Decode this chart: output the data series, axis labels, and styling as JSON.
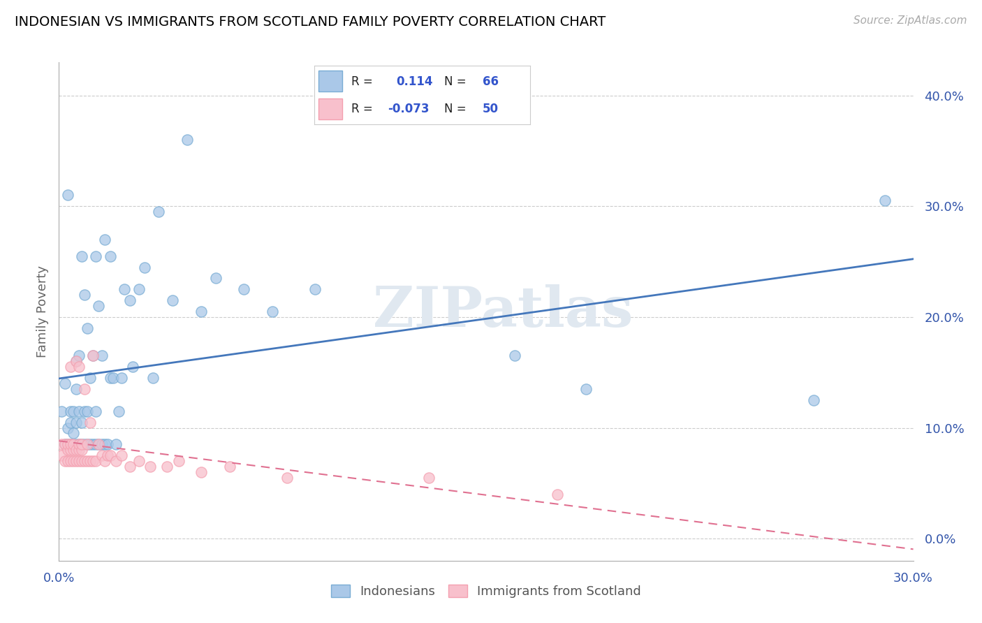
{
  "title": "INDONESIAN VS IMMIGRANTS FROM SCOTLAND FAMILY POVERTY CORRELATION CHART",
  "source": "Source: ZipAtlas.com",
  "ylabel": "Family Poverty",
  "xlim": [
    0.0,
    0.3
  ],
  "ylim": [
    -0.02,
    0.43
  ],
  "blue_color": "#7aadd4",
  "pink_color": "#f4a0b0",
  "blue_fill": "#aac8e8",
  "pink_fill": "#f8c0cc",
  "line_blue": "#4477bb",
  "line_pink": "#e07090",
  "grid_color": "#cccccc",
  "tick_color": "#3355aa",
  "watermark": "ZIPatlas",
  "indonesian_x": [
    0.001,
    0.002,
    0.002,
    0.003,
    0.003,
    0.003,
    0.004,
    0.004,
    0.004,
    0.005,
    0.005,
    0.005,
    0.006,
    0.006,
    0.006,
    0.006,
    0.007,
    0.007,
    0.007,
    0.008,
    0.008,
    0.008,
    0.009,
    0.009,
    0.009,
    0.01,
    0.01,
    0.01,
    0.011,
    0.011,
    0.012,
    0.012,
    0.013,
    0.013,
    0.013,
    0.014,
    0.014,
    0.015,
    0.015,
    0.016,
    0.016,
    0.017,
    0.018,
    0.018,
    0.019,
    0.02,
    0.021,
    0.022,
    0.023,
    0.025,
    0.026,
    0.028,
    0.03,
    0.033,
    0.035,
    0.04,
    0.045,
    0.05,
    0.055,
    0.065,
    0.075,
    0.09,
    0.16,
    0.185,
    0.265,
    0.29
  ],
  "indonesian_y": [
    0.115,
    0.14,
    0.085,
    0.1,
    0.085,
    0.31,
    0.085,
    0.115,
    0.105,
    0.085,
    0.115,
    0.095,
    0.085,
    0.105,
    0.135,
    0.16,
    0.085,
    0.115,
    0.165,
    0.085,
    0.105,
    0.255,
    0.085,
    0.115,
    0.22,
    0.085,
    0.115,
    0.19,
    0.085,
    0.145,
    0.085,
    0.165,
    0.085,
    0.115,
    0.255,
    0.085,
    0.21,
    0.085,
    0.165,
    0.085,
    0.27,
    0.085,
    0.145,
    0.255,
    0.145,
    0.085,
    0.115,
    0.145,
    0.225,
    0.215,
    0.155,
    0.225,
    0.245,
    0.145,
    0.295,
    0.215,
    0.36,
    0.205,
    0.235,
    0.225,
    0.205,
    0.225,
    0.165,
    0.135,
    0.125,
    0.305
  ],
  "scotland_x": [
    0.001,
    0.001,
    0.002,
    0.002,
    0.003,
    0.003,
    0.003,
    0.004,
    0.004,
    0.004,
    0.004,
    0.005,
    0.005,
    0.005,
    0.006,
    0.006,
    0.006,
    0.007,
    0.007,
    0.007,
    0.007,
    0.008,
    0.008,
    0.008,
    0.009,
    0.009,
    0.01,
    0.01,
    0.011,
    0.011,
    0.012,
    0.012,
    0.013,
    0.014,
    0.015,
    0.016,
    0.017,
    0.018,
    0.02,
    0.022,
    0.025,
    0.028,
    0.032,
    0.038,
    0.042,
    0.05,
    0.06,
    0.08,
    0.13,
    0.175
  ],
  "scotland_y": [
    0.075,
    0.085,
    0.07,
    0.085,
    0.07,
    0.08,
    0.085,
    0.07,
    0.08,
    0.085,
    0.155,
    0.07,
    0.08,
    0.085,
    0.07,
    0.08,
    0.16,
    0.07,
    0.08,
    0.085,
    0.155,
    0.07,
    0.08,
    0.085,
    0.07,
    0.135,
    0.07,
    0.085,
    0.07,
    0.105,
    0.07,
    0.165,
    0.07,
    0.085,
    0.075,
    0.07,
    0.075,
    0.075,
    0.07,
    0.075,
    0.065,
    0.07,
    0.065,
    0.065,
    0.07,
    0.06,
    0.065,
    0.055,
    0.055,
    0.04
  ],
  "yticks": [
    0.0,
    0.1,
    0.2,
    0.3,
    0.4
  ],
  "ytick_labels": [
    "0.0%",
    "10.0%",
    "20.0%",
    "30.0%",
    "40.0%"
  ],
  "xtick_labels": [
    "0.0%",
    "30.0%"
  ],
  "xtick_vals": [
    0.0,
    0.3
  ],
  "legend_items": [
    {
      "color": "#aac8e8",
      "r": "0.114",
      "n": "66"
    },
    {
      "color": "#f8c0cc",
      "r": "-0.073",
      "n": "50"
    }
  ],
  "bottom_legend": [
    "Indonesians",
    "Immigrants from Scotland"
  ]
}
